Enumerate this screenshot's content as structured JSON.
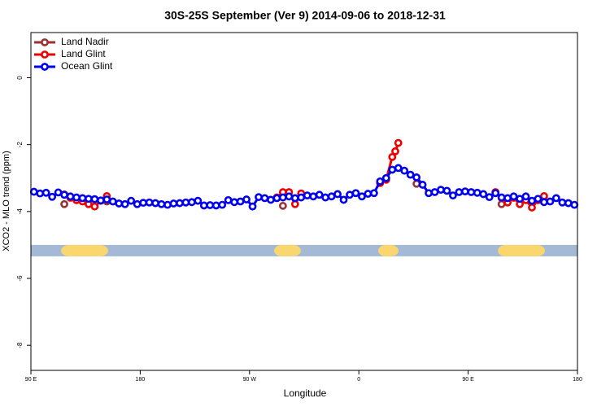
{
  "chart_data": {
    "type": "line",
    "title": "30S-25S September (Ver 9)   2014-09-06 to 2018-12-31",
    "x_label": "Longitude",
    "y_label": "XCO2 - MLO trend (ppm)",
    "xlim": [
      90,
      540
    ],
    "xticks": [
      {
        "value": 90,
        "label": "90 E"
      },
      {
        "value": 180,
        "label": "180"
      },
      {
        "value": 270,
        "label": "90 W"
      },
      {
        "value": 360,
        "label": "0"
      },
      {
        "value": 450,
        "label": "90 E"
      },
      {
        "value": 540,
        "label": "180"
      }
    ],
    "ylim": [
      -8.75,
      1.35
    ],
    "yticks": [
      -8,
      -6,
      -4,
      -2,
      0
    ],
    "legend": "top-left",
    "land_band": {
      "y": -5.17,
      "color": "#a3b9d6",
      "land_color": "#f9d66e",
      "land": [
        [
          114.8,
          153.6
        ],
        [
          290.2,
          312.3
        ],
        [
          375.9,
          392.7
        ],
        [
          474.4,
          513.2
        ]
      ]
    },
    "series": [
      {
        "name": "Land Nadir",
        "color": "#993333",
        "x": [
          117.5,
          null,
          152.5,
          null,
          297.5,
          null,
          407.5,
          null,
          477.5,
          null,
          512.5
        ],
        "values": [
          -3.78,
          null,
          -3.7,
          null,
          -3.83,
          null,
          -3.17,
          null,
          -3.78,
          null,
          -3.7
        ]
      },
      {
        "name": "Land Glint",
        "color": "#ee0000",
        "x": [
          117.5,
          122.5,
          127.5,
          132.5,
          137.5,
          142.5,
          147.5,
          152.5,
          null,
          292.5,
          297.5,
          302.5,
          307.5,
          312.5,
          null,
          377.5,
          382.5,
          387.5,
          390,
          392.5,
          null,
          472.5,
          477.5,
          482.5,
          487.5,
          492.5,
          497.5,
          502.5,
          507.5,
          512.5
        ],
        "values": [
          -3.49,
          -3.59,
          -3.66,
          -3.7,
          -3.78,
          -3.85,
          -3.68,
          -3.54,
          null,
          -3.58,
          -3.42,
          -3.42,
          -3.78,
          -3.46,
          null,
          -3.15,
          -3.05,
          -2.37,
          -2.2,
          -1.95,
          null,
          -3.42,
          -3.59,
          -3.73,
          -3.59,
          -3.78,
          -3.66,
          -3.88,
          -3.66,
          -3.54
        ]
      },
      {
        "name": "Ocean Glint",
        "color": "#0000ee",
        "x": [
          92.5,
          97.5,
          102.5,
          107.5,
          112.5,
          117.5,
          122.5,
          127.5,
          132.5,
          137.5,
          142.5,
          147.5,
          152.5,
          157.5,
          162.5,
          167.5,
          172.5,
          177.5,
          182.5,
          187.5,
          192.5,
          197.5,
          202.5,
          207.5,
          212.5,
          217.5,
          222.5,
          227.5,
          232.5,
          237.5,
          242.5,
          247.5,
          252.5,
          257.5,
          262.5,
          267.5,
          272.5,
          277.5,
          282.5,
          287.5,
          292.5,
          297.5,
          302.5,
          307.5,
          312.5,
          317.5,
          322.5,
          327.5,
          332.5,
          337.5,
          342.5,
          347.5,
          352.5,
          357.5,
          362.5,
          367.5,
          372.5,
          377.5,
          382.5,
          387.5,
          392.5,
          397.5,
          402.5,
          407.5,
          412.5,
          417.5,
          422.5,
          427.5,
          432.5,
          437.5,
          442.5,
          447.5,
          452.5,
          457.5,
          462.5,
          467.5,
          472.5,
          477.5,
          482.5,
          487.5,
          492.5,
          497.5,
          502.5,
          507.5,
          512.5,
          517.5,
          522.5,
          527.5,
          532.5,
          537.5
        ],
        "values": [
          -3.41,
          -3.46,
          -3.44,
          -3.56,
          -3.43,
          -3.5,
          -3.55,
          -3.58,
          -3.6,
          -3.62,
          -3.63,
          -3.67,
          -3.64,
          -3.7,
          -3.76,
          -3.78,
          -3.68,
          -3.78,
          -3.74,
          -3.73,
          -3.75,
          -3.78,
          -3.8,
          -3.76,
          -3.75,
          -3.73,
          -3.72,
          -3.68,
          -3.82,
          -3.81,
          -3.82,
          -3.8,
          -3.66,
          -3.72,
          -3.7,
          -3.64,
          -3.85,
          -3.57,
          -3.6,
          -3.65,
          -3.6,
          -3.58,
          -3.55,
          -3.6,
          -3.58,
          -3.52,
          -3.55,
          -3.5,
          -3.58,
          -3.55,
          -3.48,
          -3.65,
          -3.5,
          -3.45,
          -3.55,
          -3.47,
          -3.45,
          -3.1,
          -3.0,
          -2.75,
          -2.7,
          -2.78,
          -2.9,
          -2.98,
          -3.2,
          -3.45,
          -3.42,
          -3.35,
          -3.38,
          -3.52,
          -3.42,
          -3.4,
          -3.42,
          -3.44,
          -3.48,
          -3.57,
          -3.45,
          -3.58,
          -3.6,
          -3.55,
          -3.62,
          -3.55,
          -3.68,
          -3.62,
          -3.72,
          -3.7,
          -3.6,
          -3.73,
          -3.75,
          -3.8
        ]
      }
    ]
  }
}
